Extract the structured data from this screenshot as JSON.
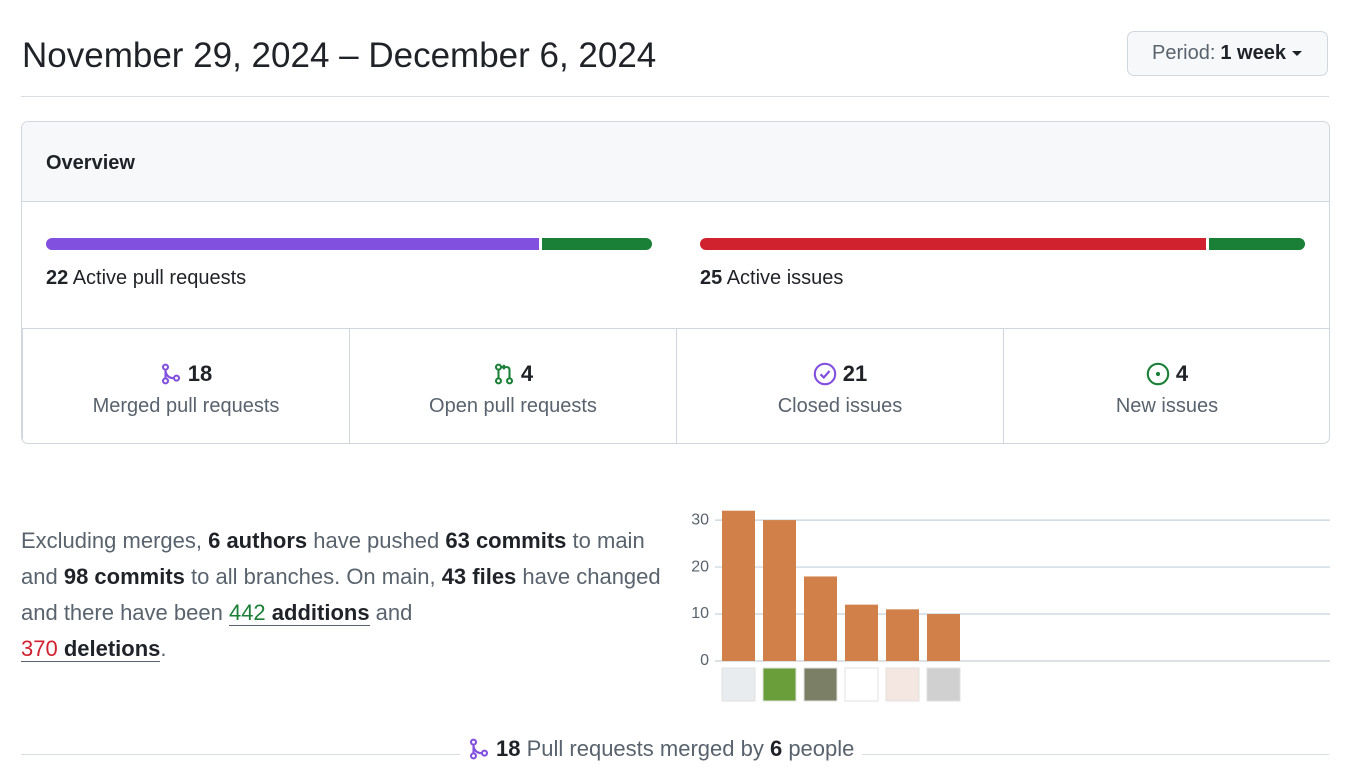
{
  "header": {
    "title": "November 29, 2024 – December 6, 2024",
    "period_label": "Period:",
    "period_value": "1 week"
  },
  "overview": {
    "title": "Overview",
    "pull_requests": {
      "active": 22,
      "active_label": "Active pull requests",
      "merged": 18,
      "merged_label": "Merged pull requests",
      "open": 4,
      "open_label": "Open pull requests"
    },
    "issues": {
      "active": 25,
      "active_label": "Active issues",
      "closed": 21,
      "closed_label": "Closed issues",
      "new": 4,
      "new_label": "New issues"
    }
  },
  "summary": {
    "segments": [
      "Excluding merges, ",
      "6 authors",
      " have pushed ",
      "63 commits",
      " to main and ",
      "98 commits",
      " to all branches. On main, ",
      "43 files",
      " have changed and there have been ",
      "442",
      " additions",
      " and ",
      "370",
      " deletions",
      "."
    ]
  },
  "chart_data": {
    "type": "bar",
    "categories": [
      null,
      null,
      null,
      null,
      null,
      null
    ],
    "values": [
      32,
      30,
      18,
      12,
      11,
      10
    ],
    "color": "#d1804a",
    "ylim": [
      0,
      33
    ],
    "yticks": [
      0,
      10,
      20,
      30
    ],
    "grid": true
  },
  "footer": {
    "segments": [
      "18",
      " Pull requests merged by ",
      "6",
      " people"
    ]
  }
}
